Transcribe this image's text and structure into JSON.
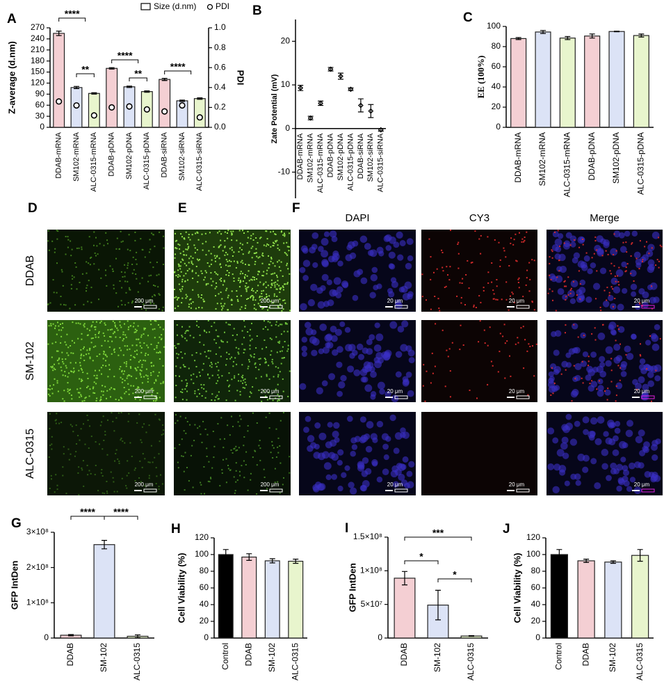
{
  "chart_data": [
    {
      "panel": "A",
      "type": "bar",
      "categories": [
        "DDAB-mRNA",
        "SM102-mRNA",
        "ALC-0315-mRNA",
        "DDAB-pDNA",
        "SM102-pDNA",
        "ALC-0315-pDNA",
        "DDAB-siRNA",
        "SM102-siRNA",
        "ALC-0315-siRNA"
      ],
      "series": [
        {
          "name": "Size (d.nm)",
          "colors": [
            "#f4cfd3",
            "#dce3f6",
            "#e8f5cd",
            "#f4cfd3",
            "#dce3f6",
            "#e8f5cd",
            "#f4cfd3",
            "#dce3f6",
            "#e8f5cd"
          ],
          "values": [
            255,
            108,
            92,
            160,
            110,
            97,
            130,
            72,
            78
          ],
          "errors": [
            6,
            3,
            2,
            2,
            2,
            2,
            3,
            2,
            2
          ]
        },
        {
          "name": "PDI",
          "type": "scatter",
          "axis": "y2",
          "color": "#000000",
          "values": [
            0.26,
            0.22,
            0.12,
            0.2,
            0.21,
            0.18,
            0.16,
            0.22,
            0.1
          ]
        }
      ],
      "ylabel": "Z-average (d.nm)",
      "y2label": "PDI",
      "ylim": [
        0,
        270
      ],
      "yticks": [
        0,
        30,
        60,
        90,
        120,
        150,
        180,
        210,
        240,
        270
      ],
      "y2lim": [
        0,
        1
      ],
      "y2ticks": [
        {
          "value": 0,
          "label": "0.0"
        },
        0.2,
        0.4,
        0.6,
        0.8,
        {
          "value": 1,
          "label": "1.0"
        }
      ],
      "annotations": [
        "****",
        "**",
        "****",
        "**",
        "****"
      ],
      "legend": "top"
    },
    {
      "panel": "B",
      "type": "scatter",
      "categories": [
        "DDAB-mRNA",
        "SM102-mRNA",
        "ALC-0315-mRNA",
        "DDAB-pDNA",
        "SM102-pDNA",
        "ALC-0315-pDNA",
        "DDAB-siRNA",
        "SM102-siRNA",
        "ALC-0315-siRNA"
      ],
      "series": [
        {
          "color": "#000000",
          "values": [
            9.3,
            2.4,
            5.8,
            13.6,
            12.0,
            9.0,
            5.3,
            4.0,
            -0.3
          ],
          "errors": [
            0.6,
            0.4,
            0.5,
            0.4,
            0.7,
            0.3,
            1.5,
            1.5,
            0.3
          ]
        }
      ],
      "ylabel": "Zate Potential (mV)",
      "ylim": [
        -16,
        25
      ],
      "yticks": [
        -10,
        0,
        10,
        20
      ]
    },
    {
      "panel": "C",
      "type": "bar",
      "categories": [
        "DDAB-mRNA",
        "SM102-mRNA",
        "ALC-0315-mRNA",
        "DDAB-pDNA",
        "SM102-pDNA",
        "ALC-0315-pDNA"
      ],
      "series": [
        {
          "colors": [
            "#f4cfd3",
            "#dce3f6",
            "#e8f5cd",
            "#f4cfd3",
            "#dce3f6",
            "#e8f5cd"
          ],
          "values": [
            88,
            94.5,
            88.5,
            90.5,
            95,
            91
          ],
          "errors": [
            1,
            1.5,
            1.5,
            2,
            0.3,
            1.5
          ]
        }
      ],
      "ylabel": "EE (100%)",
      "ylim": [
        0,
        100
      ],
      "yticks": [
        0,
        20,
        40,
        60,
        80,
        100
      ]
    },
    {
      "panel": "G",
      "type": "bar",
      "categories": [
        "DDAB",
        "SM-102",
        "ALC-0315"
      ],
      "series": [
        {
          "colors": [
            "#f4cfd3",
            "#dce3f6",
            "#e8f5cd"
          ],
          "values": [
            8000000,
            265000000,
            5000000
          ],
          "errors": [
            2000000,
            12000000,
            4000000
          ]
        }
      ],
      "ylabel": "GFP IntDen",
      "ylim": [
        0,
        300000000
      ],
      "yticks": [
        0,
        {
          "value": 100000000,
          "label": "1×10⁸"
        },
        {
          "value": 200000000,
          "label": "2×10⁸"
        },
        {
          "value": 300000000,
          "label": "3×10⁸"
        }
      ],
      "annotations": [
        "****",
        "****"
      ]
    },
    {
      "panel": "H",
      "type": "bar",
      "categories": [
        "Control",
        "DDAB",
        "SM-102",
        "ALC-0315"
      ],
      "series": [
        {
          "colors": [
            "#000000",
            "#f4cfd3",
            "#dce3f6",
            "#e8f5cd"
          ],
          "values": [
            100,
            97,
            92.5,
            92
          ],
          "errors": [
            6,
            4,
            2.5,
            2.5
          ]
        }
      ],
      "ylabel": "Cell Viability (%)",
      "ylim": [
        0,
        120
      ],
      "yticks": [
        0,
        20,
        40,
        60,
        80,
        100,
        120
      ]
    },
    {
      "panel": "I",
      "type": "bar",
      "categories": [
        "DDAB",
        "SM-102",
        "ALC-0315"
      ],
      "series": [
        {
          "colors": [
            "#f4cfd3",
            "#dce3f6",
            "#e8f5cd"
          ],
          "values": [
            89000000,
            49000000,
            3000000
          ],
          "errors": [
            10000000,
            22000000,
            500000
          ]
        }
      ],
      "ylabel": "GFP IntDen",
      "ylim": [
        0,
        150000000
      ],
      "yticks": [
        0,
        {
          "value": 50000000,
          "label": "5×10⁷"
        },
        {
          "value": 100000000,
          "label": "1×10⁸"
        },
        {
          "value": 150000000,
          "label": "1.5×10⁸"
        }
      ],
      "annotations": [
        "***",
        "*",
        "*"
      ]
    },
    {
      "panel": "J",
      "type": "bar",
      "categories": [
        "Control",
        "DDAB",
        "SM-102",
        "ALC-0315"
      ],
      "series": [
        {
          "colors": [
            "#000000",
            "#f4cfd3",
            "#dce3f6",
            "#e8f5cd"
          ],
          "values": [
            100,
            92.5,
            91,
            99
          ],
          "errors": [
            6,
            2,
            1.5,
            7
          ]
        }
      ],
      "ylabel": "Cell Viability (%)",
      "ylim": [
        0,
        120
      ],
      "yticks": [
        0,
        20,
        40,
        60,
        80,
        100,
        120
      ]
    }
  ],
  "micrographs": {
    "panels": [
      "D",
      "E",
      "F"
    ],
    "rows": [
      "DDAB",
      "SM-102",
      "ALC-0315"
    ],
    "columns": [
      "DAPI",
      "CY3",
      "Merge"
    ],
    "scale_bars": [
      [
        "200 μm",
        "200 μm",
        "20 μm",
        "20 μm",
        "20 μm"
      ],
      [
        "200 μm",
        "200 μm",
        "20 μm",
        "20 μm",
        "20 μm"
      ],
      [
        "200 μm",
        "200 μm",
        "20 μm",
        "20 μm",
        "20 μm"
      ]
    ]
  }
}
